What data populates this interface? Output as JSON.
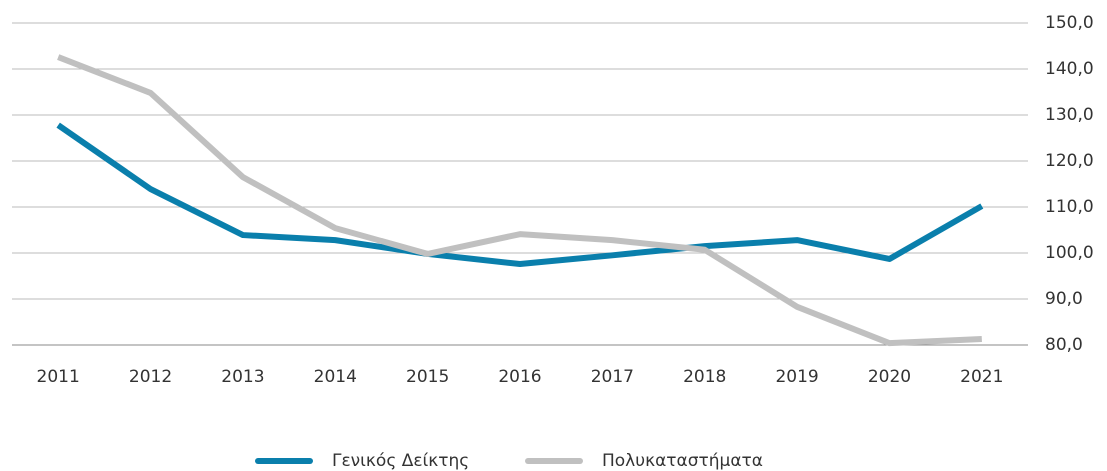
{
  "chart_data": {
    "type": "line",
    "categories": [
      "2011",
      "2012",
      "2013",
      "2014",
      "2015",
      "2016",
      "2017",
      "2018",
      "2019",
      "2020",
      "2021"
    ],
    "series": [
      {
        "name": "Γενικός Δείκτης",
        "color": "#0a7fac",
        "values": [
          127.8,
          113.9,
          103.9,
          102.8,
          99.8,
          97.6,
          99.5,
          101.5,
          102.8,
          98.7,
          110.2
        ]
      },
      {
        "name": "Πολυκαταστήματα",
        "color": "#c0c0c0",
        "values": [
          142.6,
          134.8,
          116.5,
          105.4,
          99.8,
          104.1,
          102.8,
          100.7,
          88.3,
          80.4,
          81.3
        ]
      }
    ],
    "ylim": [
      80,
      150
    ],
    "yticks": [
      {
        "value": 80,
        "label": "80,0"
      },
      {
        "value": 90,
        "label": "90,0"
      },
      {
        "value": 100,
        "label": "100,0"
      },
      {
        "value": 110,
        "label": "110,0"
      },
      {
        "value": 120,
        "label": "120,0"
      },
      {
        "value": 130,
        "label": "130,0"
      },
      {
        "value": 140,
        "label": "140,0"
      },
      {
        "value": 150,
        "label": "150,0"
      }
    ],
    "grid": true,
    "legend": "bottom"
  }
}
